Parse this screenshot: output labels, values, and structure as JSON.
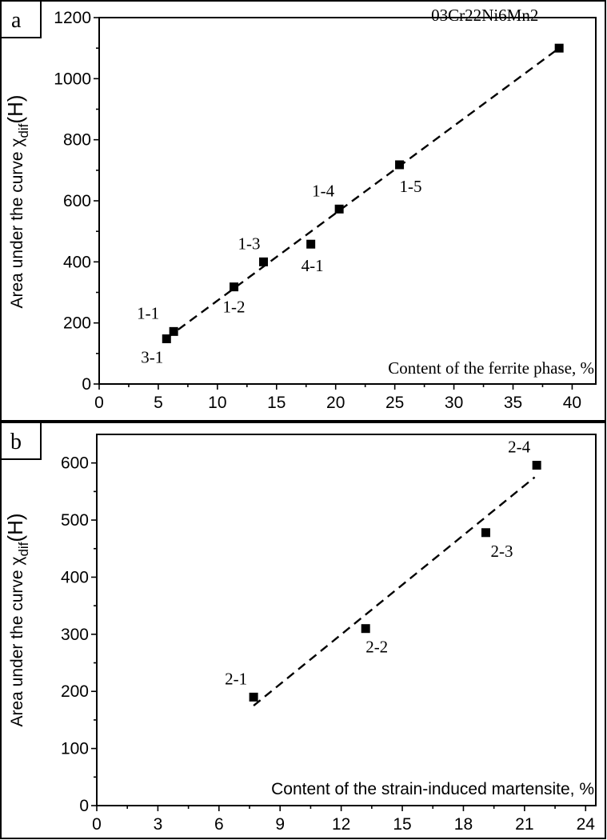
{
  "chart_data": [
    {
      "panel": "a",
      "type": "scatter",
      "ylabel": "Area under the curve χ",
      "ylabel_sub": "dif",
      "ylabel_arg": "(H)",
      "xlabel": "Content of the ferrite phase, %",
      "xlim": [
        0,
        42
      ],
      "ylim": [
        0,
        1200
      ],
      "xticks": [
        0,
        5,
        10,
        15,
        20,
        25,
        30,
        35,
        40
      ],
      "yticks": [
        0,
        200,
        400,
        600,
        800,
        1000,
        1200
      ],
      "points": [
        {
          "label": "3-1",
          "x": 5.7,
          "y": 148
        },
        {
          "label": "1-1",
          "x": 6.3,
          "y": 172
        },
        {
          "label": "1-2",
          "x": 11.4,
          "y": 318
        },
        {
          "label": "1-3",
          "x": 13.9,
          "y": 400
        },
        {
          "label": "4-1",
          "x": 17.9,
          "y": 458
        },
        {
          "label": "1-4",
          "x": 20.3,
          "y": 573
        },
        {
          "label": "1-5",
          "x": 25.4,
          "y": 718
        },
        {
          "label": "03Cr22Ni6Mn2",
          "x": 38.9,
          "y": 1100
        }
      ],
      "fit_line": {
        "x": [
          5.7,
          38.9
        ],
        "y": [
          150,
          1100
        ]
      }
    },
    {
      "panel": "b",
      "type": "scatter",
      "ylabel": "Area under the curve χ",
      "ylabel_sub": "dif",
      "ylabel_arg": "(H)",
      "xlabel": "Content of the strain-induced martensite, %",
      "xlim": [
        0,
        24.5
      ],
      "ylim": [
        0,
        650
      ],
      "xticks": [
        0,
        3,
        6,
        9,
        12,
        15,
        18,
        21,
        24
      ],
      "yticks": [
        0,
        100,
        200,
        300,
        400,
        500,
        600
      ],
      "points": [
        {
          "label": "2-1",
          "x": 7.7,
          "y": 190
        },
        {
          "label": "2-2",
          "x": 13.2,
          "y": 310
        },
        {
          "label": "2-3",
          "x": 19.1,
          "y": 478
        },
        {
          "label": "2-4",
          "x": 21.6,
          "y": 596
        }
      ],
      "fit_line": {
        "x": [
          7.7,
          21.5
        ],
        "y": [
          175,
          575
        ]
      }
    }
  ]
}
